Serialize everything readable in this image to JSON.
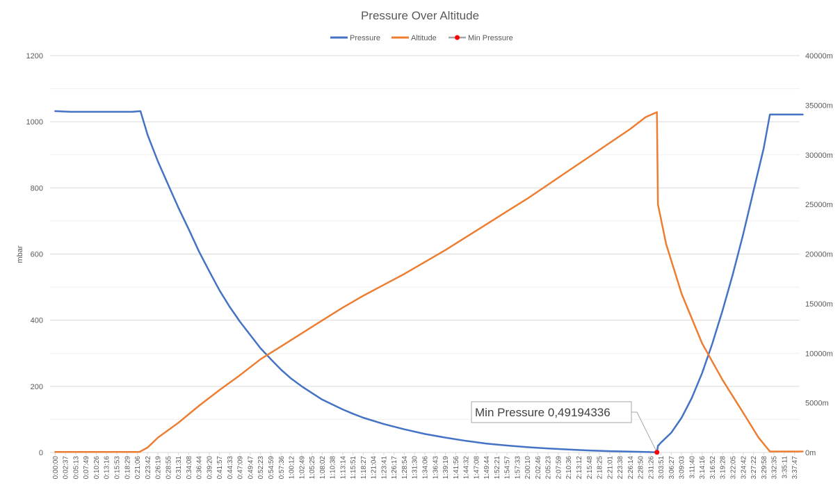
{
  "chart_data": {
    "type": "line",
    "title": "Pressure Over Altitude",
    "ylabel": "mbar",
    "ylim": [
      0,
      1200
    ],
    "y2lim": [
      0,
      40000
    ],
    "y_ticks": [
      "0",
      "200",
      "400",
      "600",
      "800",
      "1000",
      "1200"
    ],
    "y2_ticks": [
      "0m",
      "5000m",
      "10000m",
      "15000m",
      "20000m",
      "25000m",
      "30000m",
      "35000m",
      "40000m"
    ],
    "grid": true,
    "legend_position": "top",
    "x_ticks": [
      "0:00:00",
      "0:02:37",
      "0:05:13",
      "0:07:49",
      "0:10:26",
      "0:13:16",
      "0:15:53",
      "0:18:29",
      "0:21:06",
      "0:23:42",
      "0:26:19",
      "0:28:55",
      "0:31:31",
      "0:34:08",
      "0:36:44",
      "0:39:20",
      "0:41:57",
      "0:44:33",
      "0:47:09",
      "0:49:47",
      "0:52:23",
      "0:54:59",
      "0:57:36",
      "1:00:12",
      "1:02:49",
      "1:05:25",
      "1:08:02",
      "1:10:38",
      "1:13:14",
      "1:15:51",
      "1:18:27",
      "1:21:04",
      "1:23:41",
      "1:26:17",
      "1:28:54",
      "1:31:30",
      "1:34:06",
      "1:36:43",
      "1:39:19",
      "1:41:56",
      "1:44:32",
      "1:47:08",
      "1:49:44",
      "1:52:21",
      "1:54:57",
      "1:57:33",
      "2:00:10",
      "2:02:46",
      "2:05:23",
      "2:07:59",
      "2:10:36",
      "2:13:12",
      "2:15:48",
      "2:18:25",
      "2:21:01",
      "2:23:38",
      "2:26:14",
      "2:28:50",
      "2:31:26",
      "3:03:51",
      "3:06:27",
      "3:09:03",
      "3:11:40",
      "3:14:16",
      "3:16:52",
      "3:19:28",
      "3:22:05",
      "3:24:42",
      "3:27:22",
      "3:29:58",
      "3:32:35",
      "3:35:11",
      "3:37:47"
    ],
    "series": [
      {
        "name": "Pressure",
        "color": "#4472C4",
        "axis": "left",
        "points": [
          [
            0,
            1032
          ],
          [
            1.5,
            1030
          ],
          [
            7.5,
            1030
          ],
          [
            8.3,
            1032
          ],
          [
            9,
            960
          ],
          [
            10,
            880
          ],
          [
            11,
            810
          ],
          [
            12,
            740
          ],
          [
            13,
            675
          ],
          [
            14,
            608
          ],
          [
            15,
            548
          ],
          [
            16,
            490
          ],
          [
            17,
            440
          ],
          [
            18,
            395
          ],
          [
            19,
            355
          ],
          [
            20,
            315
          ],
          [
            21,
            282
          ],
          [
            22,
            250
          ],
          [
            23,
            223
          ],
          [
            24,
            200
          ],
          [
            25,
            180
          ],
          [
            26,
            160
          ],
          [
            27,
            145
          ],
          [
            28,
            130
          ],
          [
            29,
            117
          ],
          [
            30,
            105
          ],
          [
            32,
            86
          ],
          [
            34,
            70
          ],
          [
            36,
            56
          ],
          [
            38,
            45
          ],
          [
            40,
            35
          ],
          [
            42,
            27
          ],
          [
            44,
            21
          ],
          [
            46,
            16
          ],
          [
            48,
            12
          ],
          [
            50,
            9
          ],
          [
            52,
            6
          ],
          [
            54,
            4
          ],
          [
            56,
            2.5
          ],
          [
            57.5,
            1.5
          ],
          [
            58.6,
            0.49194336
          ],
          [
            58.7,
            20
          ],
          [
            59,
            30
          ],
          [
            60,
            60
          ],
          [
            61,
            105
          ],
          [
            62,
            165
          ],
          [
            63,
            240
          ],
          [
            64,
            330
          ],
          [
            65,
            430
          ],
          [
            66,
            540
          ],
          [
            67,
            660
          ],
          [
            68,
            790
          ],
          [
            69,
            920
          ],
          [
            69.6,
            1022
          ],
          [
            72.8,
            1022
          ]
        ]
      },
      {
        "name": "Altitude",
        "color": "#ED7D31",
        "axis": "right",
        "points": [
          [
            0,
            50
          ],
          [
            8.2,
            50
          ],
          [
            9,
            500
          ],
          [
            10,
            1500
          ],
          [
            12,
            3000
          ],
          [
            14,
            4700
          ],
          [
            16,
            6300
          ],
          [
            18,
            7800
          ],
          [
            20,
            9400
          ],
          [
            22,
            10700
          ],
          [
            24,
            12000
          ],
          [
            26,
            13300
          ],
          [
            28,
            14600
          ],
          [
            30,
            15800
          ],
          [
            32,
            16900
          ],
          [
            34,
            18000
          ],
          [
            36,
            19200
          ],
          [
            38,
            20400
          ],
          [
            40,
            21700
          ],
          [
            42,
            23000
          ],
          [
            44,
            24300
          ],
          [
            46,
            25600
          ],
          [
            48,
            27000
          ],
          [
            50,
            28400
          ],
          [
            52,
            29800
          ],
          [
            54,
            31200
          ],
          [
            56,
            32600
          ],
          [
            57.5,
            33800
          ],
          [
            58.6,
            34300
          ],
          [
            58.7,
            25000
          ],
          [
            59.5,
            21000
          ],
          [
            61,
            16000
          ],
          [
            63,
            11000
          ],
          [
            65,
            7300
          ],
          [
            67,
            4000
          ],
          [
            68.5,
            1500
          ],
          [
            69.6,
            100
          ],
          [
            72.8,
            100
          ]
        ]
      }
    ],
    "markers": [
      {
        "name": "Min Pressure",
        "x_index": 58.6,
        "value": 0.49194336,
        "color": "#FF0000",
        "label": "Min Pressure  0,49194336"
      }
    ]
  }
}
